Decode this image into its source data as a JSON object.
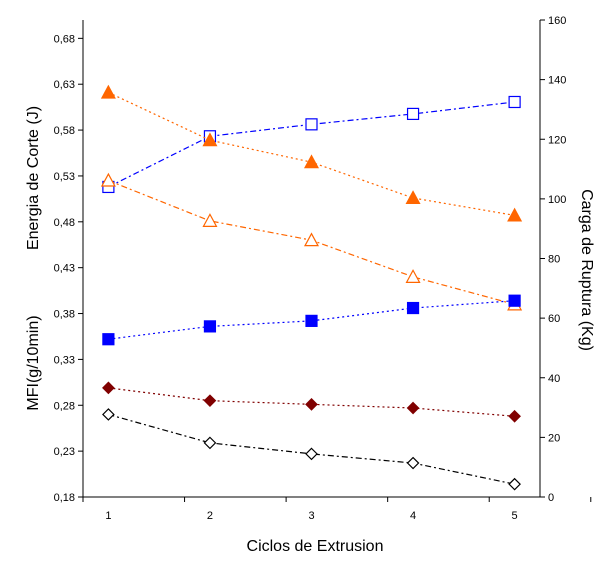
{
  "chart_data": {
    "type": "line",
    "xlabel": "Ciclos de Extrusion",
    "ylabel_left_top": "Energia de Corte (J)",
    "ylabel_left_bottom": "MFI(g/10min)",
    "ylabel_right": "Carga de Ruptura (Kg)",
    "x": [
      1,
      2,
      3,
      4,
      5
    ],
    "xlim": [
      0.75,
      5.25
    ],
    "ylim_left": [
      0.18,
      0.7
    ],
    "ylim_right": [
      0,
      160
    ],
    "yticks_left": [
      "0,18",
      "0,23",
      "0,28",
      "0,33",
      "0,38",
      "0,43",
      "0,48",
      "0,53",
      "0,58",
      "0,63",
      "0,68"
    ],
    "yticks_right": [
      0,
      20,
      40,
      60,
      80,
      100,
      120,
      140,
      160
    ],
    "xticks": [
      1,
      2,
      3,
      4,
      5
    ],
    "grid": false,
    "legend": "none",
    "series": [
      {
        "axis": "right",
        "color": "#0000ff",
        "marker": "square-open",
        "dash": "6,3,2,3",
        "values": [
          104,
          121,
          125,
          128.5,
          132.5
        ]
      },
      {
        "axis": "left",
        "color": "#ff6600",
        "marker": "triangle-filled",
        "dash": "2,3",
        "values": [
          0.621,
          0.569,
          0.545,
          0.506,
          0.487
        ]
      },
      {
        "axis": "left",
        "color": "#ff6600",
        "marker": "triangle-open",
        "dash": "6,3,2,3",
        "values": [
          0.525,
          0.481,
          0.46,
          0.42,
          0.39
        ]
      },
      {
        "axis": "left",
        "color": "#0000ff",
        "marker": "square-filled",
        "dash": "2,3",
        "values": [
          0.352,
          0.366,
          0.372,
          0.386,
          0.394
        ]
      },
      {
        "axis": "left",
        "color": "#800000",
        "marker": "diamond-filled",
        "dash": "2,3",
        "values": [
          0.299,
          0.285,
          0.281,
          0.277,
          0.268
        ]
      },
      {
        "axis": "left",
        "color": "#000000",
        "marker": "diamond-open",
        "dash": "6,3,2,3",
        "values": [
          0.27,
          0.239,
          0.227,
          0.217,
          0.194
        ]
      }
    ]
  }
}
